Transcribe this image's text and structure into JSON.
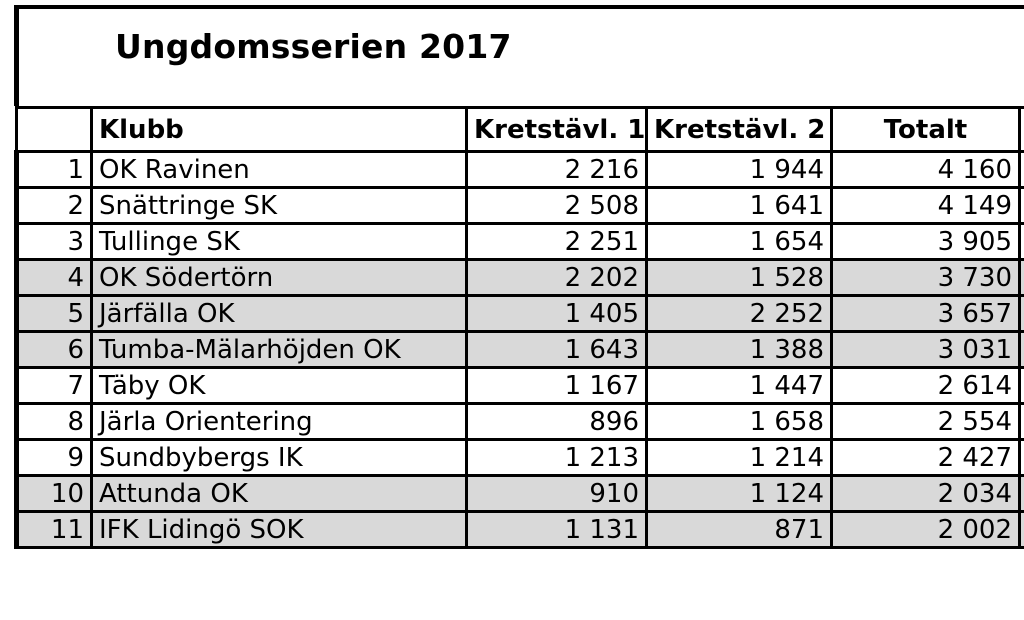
{
  "title": "Ungdomsserien 2017",
  "headers": {
    "rank": "",
    "club": "Klubb",
    "k1": "Kretstävl. 1",
    "k2": "Kretstävl. 2",
    "total": "Totalt"
  },
  "rows": [
    {
      "rank": "1",
      "club": "OK Ravinen",
      "k1": "2 216",
      "k2": "1 944",
      "total": "4 160",
      "shaded": false
    },
    {
      "rank": "2",
      "club": "Snättringe SK",
      "k1": "2 508",
      "k2": "1 641",
      "total": "4 149",
      "shaded": false
    },
    {
      "rank": "3",
      "club": "Tullinge SK",
      "k1": "2 251",
      "k2": "1 654",
      "total": "3 905",
      "shaded": false
    },
    {
      "rank": "4",
      "club": "OK Södertörn",
      "k1": "2 202",
      "k2": "1 528",
      "total": "3 730",
      "shaded": true
    },
    {
      "rank": "5",
      "club": "Järfälla OK",
      "k1": "1 405",
      "k2": "2 252",
      "total": "3 657",
      "shaded": true
    },
    {
      "rank": "6",
      "club": "Tumba-Mälarhöjden OK",
      "k1": "1 643",
      "k2": "1 388",
      "total": "3 031",
      "shaded": true
    },
    {
      "rank": "7",
      "club": "Täby OK",
      "k1": "1 167",
      "k2": "1 447",
      "total": "2 614",
      "shaded": false
    },
    {
      "rank": "8",
      "club": "Järla Orientering",
      "k1": "896",
      "k2": "1 658",
      "total": "2 554",
      "shaded": false
    },
    {
      "rank": "9",
      "club": "Sundbybergs IK",
      "k1": "1 213",
      "k2": "1 214",
      "total": "2 427",
      "shaded": false
    },
    {
      "rank": "10",
      "club": "Attunda OK",
      "k1": "910",
      "k2": "1 124",
      "total": "2 034",
      "shaded": true
    },
    {
      "rank": "11",
      "club": "IFK Lidingö SOK",
      "k1": "1 131",
      "k2": "871",
      "total": "2 002",
      "shaded": true
    }
  ],
  "colors": {
    "shaded_row": "#d9d9d9",
    "border": "#000000"
  }
}
